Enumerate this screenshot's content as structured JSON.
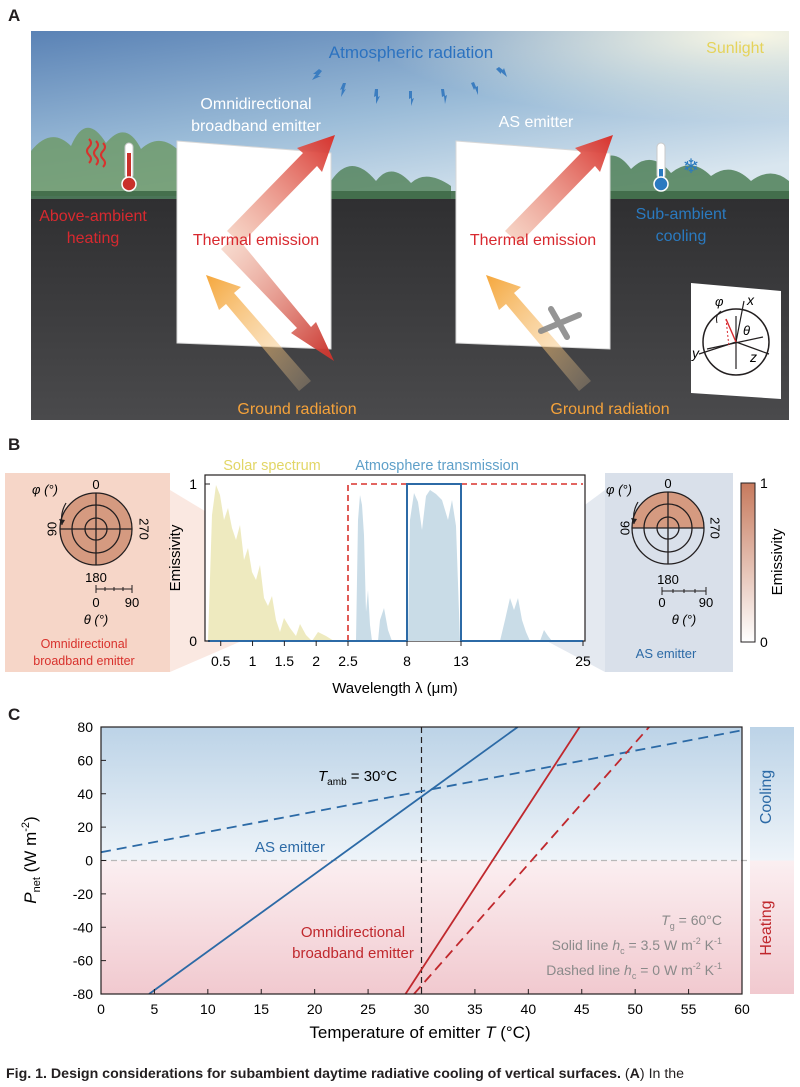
{
  "panel_labels": {
    "a": "A",
    "b": "B",
    "c": "C"
  },
  "panel_a": {
    "atmospheric_radiation": "Atmospheric radiation",
    "sunlight": "Sunlight",
    "omni_emitter_line1": "Omnidirectional",
    "omni_emitter_line2": "broadband emitter",
    "as_emitter": "AS emitter",
    "thermal_emission_left": "Thermal emission",
    "thermal_emission_right": "Thermal emission",
    "above_ambient_line1": "Above-ambient",
    "above_ambient_line2": "heating",
    "sub_ambient_line1": "Sub-ambient",
    "sub_ambient_line2": "cooling",
    "ground_radiation_left": "Ground radiation",
    "ground_radiation_right": "Ground radiation",
    "axis_phi": "φ",
    "axis_x": "x",
    "axis_theta": "θ",
    "axis_y": "y",
    "axis_z": "z",
    "colors": {
      "sky_top": "#5f86b8",
      "sky_bottom": "#c9dcea",
      "ground": "#3b3b3e",
      "red_text": "#d8292f",
      "blue_text": "#2a7ac0",
      "sun_text": "#e6d24a",
      "orange_text": "#f5a23a"
    }
  },
  "panel_b": {
    "solar_spectrum_label": "Solar spectrum",
    "atmosphere_transmission_label": "Atmosphere transmission",
    "ylabel": "Emissivity",
    "xlabel": "Wavelength λ (μm)",
    "ytick_top": "1",
    "ytick_bottom": "0",
    "xticks": [
      "0.5",
      "1",
      "1.5",
      "2",
      "2.5",
      "8",
      "13",
      "25"
    ],
    "left_polar": {
      "phi_label": "φ (°)",
      "top": "0",
      "left": "90",
      "right": "270",
      "bottom": "180",
      "theta_label": "θ (°)",
      "theta_ticks": [
        "0",
        "90"
      ],
      "caption_line1": "Omnidirectional",
      "caption_line2": "broadband emitter"
    },
    "right_polar": {
      "phi_label": "φ (°)",
      "top": "0",
      "left": "90",
      "right": "270",
      "bottom": "180",
      "theta_label": "θ (°)",
      "theta_ticks": [
        "0",
        "90"
      ],
      "caption": "AS emitter"
    },
    "colorbar": {
      "top": "1",
      "bottom": "0",
      "label": "Emissivity",
      "color_high": "#c77a5d",
      "color_low": "#ffffff"
    },
    "omni_emissivity_series": {
      "x": [
        0.3,
        2.5,
        25
      ],
      "y": [
        0,
        1,
        1
      ]
    },
    "as_emissivity_series": {
      "x": [
        0.3,
        8,
        8,
        13,
        13,
        25
      ],
      "y": [
        0,
        0,
        1,
        1,
        0,
        0
      ]
    }
  },
  "chart_data": {
    "type": "line",
    "title": "",
    "xlabel_main": "Temperature of emitter ",
    "xlabel_symbol": "T",
    "xlabel_unit": " (°C)",
    "ylabel_main": "P",
    "ylabel_sub": "net",
    "ylabel_unit": " (W m",
    "ylabel_sup": "-2",
    "ylabel_close": ")",
    "xlim": [
      0,
      60
    ],
    "ylim": [
      -80,
      80
    ],
    "xticks": [
      0,
      5,
      10,
      15,
      20,
      25,
      30,
      35,
      40,
      45,
      50,
      55,
      60
    ],
    "yticks": [
      80,
      60,
      40,
      20,
      0,
      -20,
      -40,
      -60,
      -80
    ],
    "t_amb_label_main": "T",
    "t_amb_label_sub": "amb",
    "t_amb_label_rest": " = 30°C",
    "t_amb": 30,
    "cooling_label": "Cooling",
    "heating_label": "Heating",
    "as_emitter_label": "AS emitter",
    "omni_label_line1": "Omnidirectional",
    "omni_label_line2": "broadband emitter",
    "tg_text_main": "T",
    "tg_text_sub": "g",
    "tg_text_rest": " = 60°C",
    "solid_text_main": "Solid line ",
    "solid_text_h": "h",
    "solid_text_sub": "c",
    "solid_text_rest": " = 3.5 W m",
    "solid_text_sup1": "-2",
    "solid_text_k": " K",
    "solid_text_sup2": "-1",
    "dashed_text_main": "Dashed line ",
    "dashed_text_h": "h",
    "dashed_text_sub": "c",
    "dashed_text_rest": " = 0 W m",
    "dashed_text_sup1": "-2",
    "dashed_text_k": " K",
    "dashed_text_sup2": "-1",
    "series": [
      {
        "name": "AS emitter, solid (h_c = 3.5 W m-2 K-1)",
        "color": "#2c6aa6",
        "dash": false,
        "x": [
          4.5,
          39
        ],
        "y": [
          -80,
          80
        ]
      },
      {
        "name": "AS emitter, dashed (h_c = 0 W m-2 K-1)",
        "color": "#2c6aa6",
        "dash": true,
        "x": [
          0,
          60
        ],
        "y": [
          5,
          78
        ]
      },
      {
        "name": "Omnidirectional broadband emitter, solid (h_c = 3.5 W m-2 K-1)",
        "color": "#c0282d",
        "dash": false,
        "x": [
          28.5,
          44.8
        ],
        "y": [
          -80,
          80
        ]
      },
      {
        "name": "Omnidirectional broadband emitter, dashed (h_c = 0 W m-2 K-1)",
        "color": "#c0282d",
        "dash": true,
        "x": [
          29.3,
          51.3
        ],
        "y": [
          -80,
          80
        ]
      }
    ],
    "colors": {
      "cooling_bg": "#c6d9ea",
      "heating_bg": "#f3d3d7",
      "cooling_text": "#2c6aa6",
      "heating_text": "#c0282d",
      "note_text": "#8a8a8a"
    }
  },
  "caption": {
    "prefix": "Fig. 1. Design considerations for subambient daytime radiative cooling of vertical surfaces.",
    "a_open": " (",
    "a_letter": "A",
    "a_close": ")",
    "rest": " In the"
  }
}
